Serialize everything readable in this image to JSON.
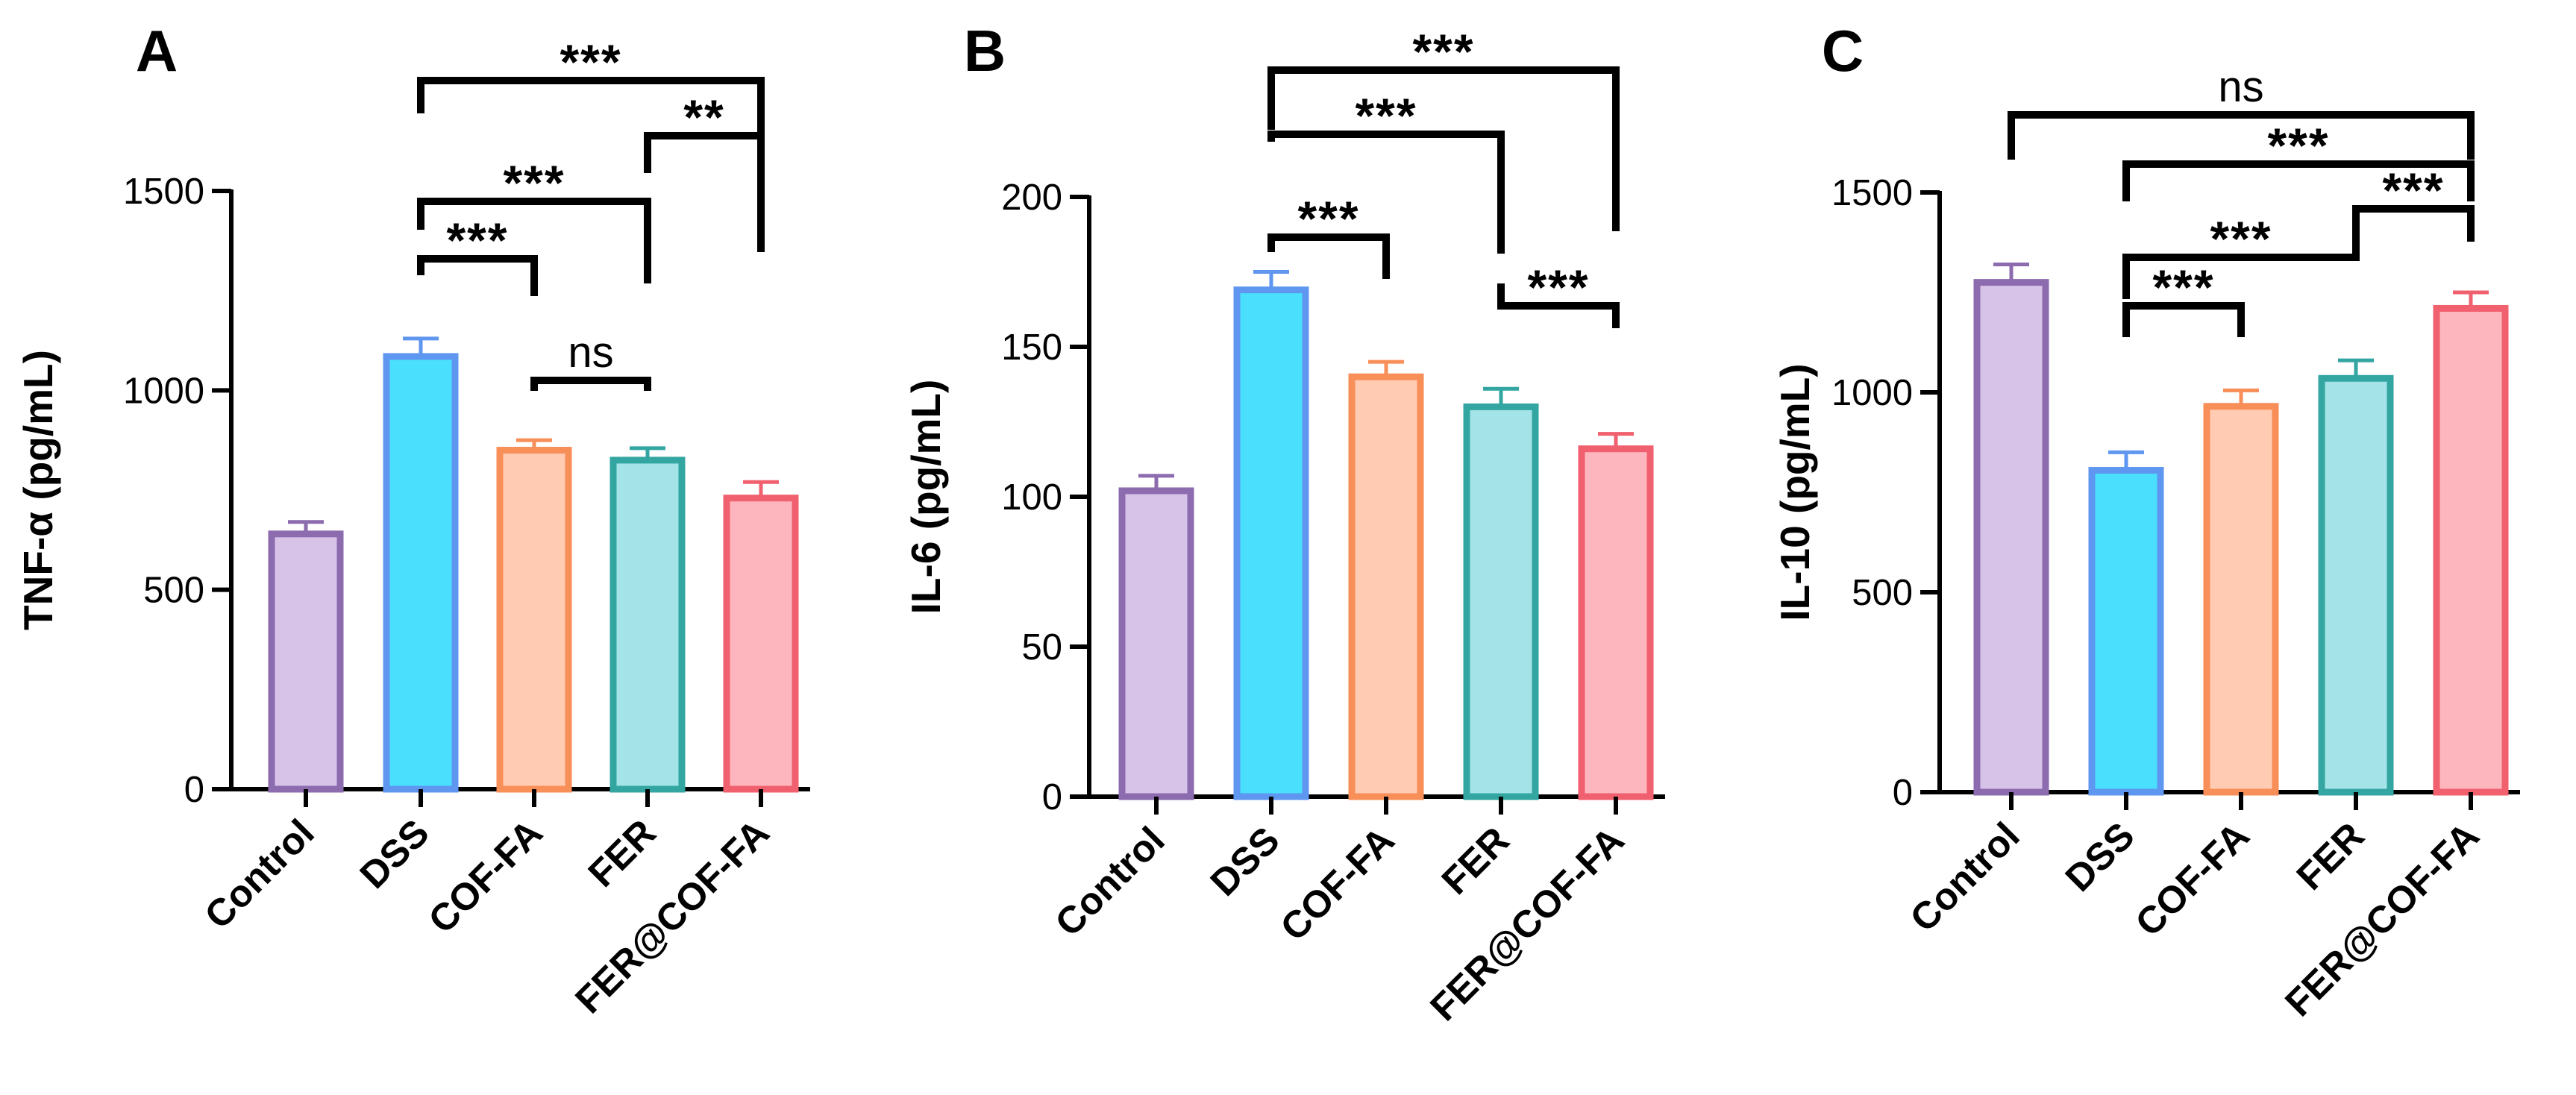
{
  "colors": {
    "Control": {
      "fill": "#D8C3E8",
      "stroke": "#8C6BAF"
    },
    "DSS": {
      "fill": "#4ADFFC",
      "stroke": "#5F96F0"
    },
    "COF-FA": {
      "fill": "#FFCBB2",
      "stroke": "#F88E58"
    },
    "FER": {
      "fill": "#A4E4E8",
      "stroke": "#33A6A2"
    },
    "FER@COF-FA": {
      "fill": "#FDB6BD",
      "stroke": "#F0606E"
    }
  },
  "chart_data": [
    {
      "panel": "A",
      "type": "bar",
      "ylabel": "TNF-α (pg/mL)",
      "ylim": [
        0,
        1500
      ],
      "yticks": [
        0,
        500,
        1000,
        1500
      ],
      "categories": [
        "Control",
        "DSS",
        "COF-FA",
        "FER",
        "FER@COF-FA"
      ],
      "values": [
        640,
        1085,
        850,
        825,
        730
      ],
      "errors": [
        30,
        45,
        25,
        30,
        40
      ],
      "significance": [
        {
          "from": "DSS",
          "to": "FER@COF-FA",
          "label": "***"
        },
        {
          "from": "FER",
          "to": "FER@COF-FA",
          "label": "**"
        },
        {
          "from": "DSS",
          "to": "FER",
          "label": "***"
        },
        {
          "from": "DSS",
          "to": "COF-FA",
          "label": "***"
        },
        {
          "from": "COF-FA",
          "to": "FER",
          "label": "ns"
        }
      ]
    },
    {
      "panel": "B",
      "type": "bar",
      "ylabel": "IL-6 (pg/mL)",
      "ylim": [
        0,
        200
      ],
      "yticks": [
        0,
        50,
        100,
        150,
        200
      ],
      "categories": [
        "Control",
        "DSS",
        "COF-FA",
        "FER",
        "FER@COF-FA"
      ],
      "values": [
        102,
        169,
        140,
        130,
        116
      ],
      "errors": [
        5,
        6,
        5,
        6,
        5
      ],
      "significance": [
        {
          "from": "DSS",
          "to": "FER@COF-FA",
          "label": "***"
        },
        {
          "from": "DSS",
          "to": "FER",
          "label": "***"
        },
        {
          "from": "DSS",
          "to": "COF-FA",
          "label": "***"
        },
        {
          "from": "FER",
          "to": "FER@COF-FA",
          "label": "***"
        }
      ]
    },
    {
      "panel": "C",
      "type": "bar",
      "ylabel": "IL-10 (pg/mL)",
      "ylim": [
        0,
        1500
      ],
      "yticks": [
        0,
        500,
        1000,
        1500
      ],
      "categories": [
        "Control",
        "DSS",
        "COF-FA",
        "FER",
        "FER@COF-FA"
      ],
      "values": [
        1275,
        805,
        965,
        1035,
        1210
      ],
      "errors": [
        45,
        45,
        40,
        45,
        40
      ],
      "significance": [
        {
          "from": "Control",
          "to": "FER@COF-FA",
          "label": "ns"
        },
        {
          "from": "DSS",
          "to": "FER@COF-FA",
          "label": "***"
        },
        {
          "from": "FER",
          "to": "FER@COF-FA",
          "label": "***"
        },
        {
          "from": "DSS",
          "to": "FER",
          "label": "***"
        },
        {
          "from": "DSS",
          "to": "COF-FA",
          "label": "***"
        }
      ]
    }
  ]
}
